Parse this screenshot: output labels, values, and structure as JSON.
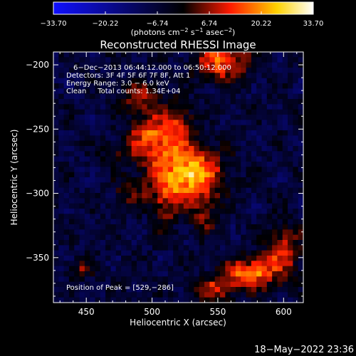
{
  "chart_data": {
    "type": "heatmap",
    "title": "Reconstructed RHESSI Image",
    "xlabel": "Heliocentric X (arcsec)",
    "ylabel": "Heliocentric Y (arcsec)",
    "xlim": [
      425,
      615
    ],
    "ylim": [
      -385,
      -190
    ],
    "x_ticks": [
      450,
      500,
      550,
      600
    ],
    "x_tick_labels": [
      "450",
      "500",
      "550",
      "600"
    ],
    "y_ticks": [
      -200,
      -250,
      -300,
      -350
    ],
    "y_tick_labels": [
      "−200",
      "−250",
      "−300",
      "−350"
    ],
    "colorbar": {
      "min": -33.7,
      "max": 33.7,
      "ticks": [
        -33.7,
        -20.22,
        -6.74,
        6.74,
        20.22,
        33.7
      ],
      "tick_labels": [
        "−33.70",
        "−20.22",
        "−6.74",
        "6.74",
        "20.22",
        "33.70"
      ],
      "colors": [
        "#1010ff",
        "#000000",
        "#ff1a00",
        "#ffd200",
        "#ffffff"
      ]
    },
    "units_prefix": "(photons cm",
    "units_exp1": "−2",
    "units_mid1": " s",
    "units_exp2": "−1",
    "units_mid2": " asec",
    "units_exp3": "−2",
    "units_suffix": ")",
    "annotations": [
      "6−Dec−2013 06:44:12.000 to 06:50:12.000",
      "Detectors: 3F 4F 5F 6F 7F 8F, Att 1",
      "Energy Range: 3.0 − 6.0 keV",
      "Clean     Total counts: 1.34E+04"
    ],
    "peak_label": "Position of Peak = [529,−286]",
    "peak": {
      "x": 529,
      "y": -286,
      "value": 33.7
    },
    "sources": [
      {
        "x": 527,
        "y": -285,
        "sx": 17,
        "sy": 15,
        "amp": 33
      },
      {
        "x": 500,
        "y": -257,
        "sx": 12,
        "sy": 14,
        "amp": 22
      },
      {
        "x": 520,
        "y": -245,
        "sx": 8,
        "sy": 12,
        "amp": 14
      },
      {
        "x": 490,
        "y": -225,
        "sx": 10,
        "sy": 8,
        "amp": 13
      },
      {
        "x": 553,
        "y": -197,
        "sx": 13,
        "sy": 10,
        "amp": 24
      },
      {
        "x": 510,
        "y": -310,
        "sx": 6,
        "sy": 14,
        "amp": 11
      },
      {
        "x": 540,
        "y": -318,
        "sx": 7,
        "sy": 10,
        "amp": 10
      },
      {
        "x": 485,
        "y": -300,
        "sx": 10,
        "sy": 8,
        "amp": 9
      },
      {
        "x": 445,
        "y": -360,
        "sx": 6,
        "sy": 5,
        "amp": 11
      },
      {
        "x": 575,
        "y": -362,
        "sx": 14,
        "sy": 8,
        "amp": 26
      },
      {
        "x": 600,
        "y": -345,
        "sx": 9,
        "sy": 14,
        "amp": 18
      },
      {
        "x": 548,
        "y": -375,
        "sx": 12,
        "sy": 6,
        "amp": 16
      },
      {
        "x": 470,
        "y": -270,
        "sx": 8,
        "sy": 6,
        "amp": 7
      }
    ],
    "background_level": -7.5
  },
  "footer": {
    "timestamp": "18−May−2022 23:36"
  }
}
